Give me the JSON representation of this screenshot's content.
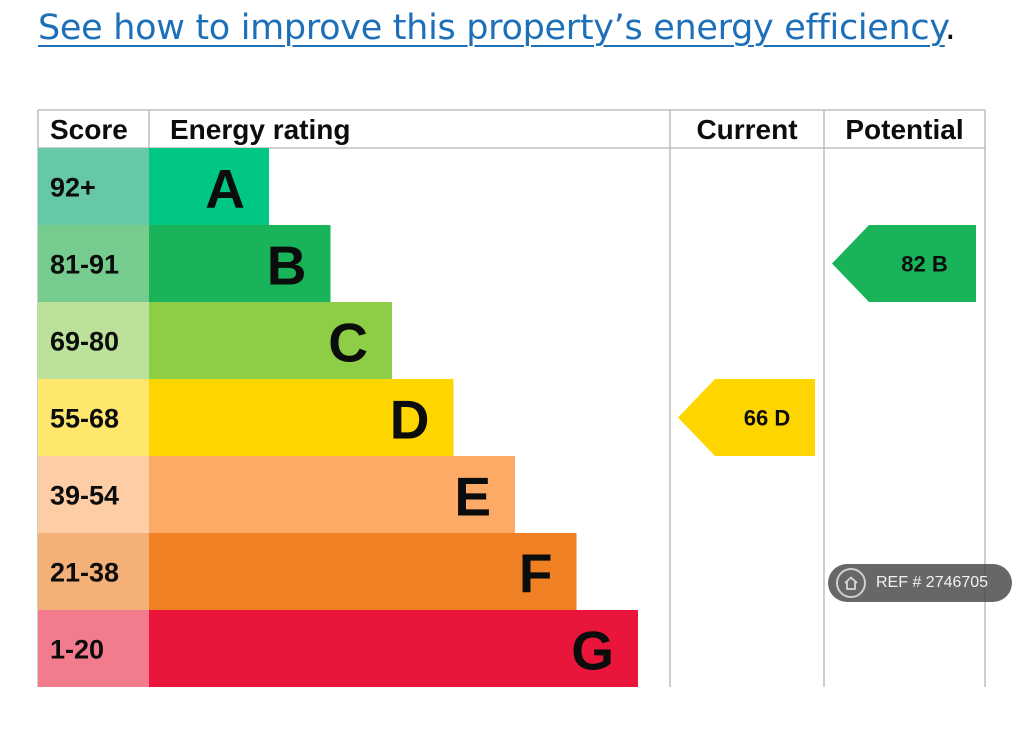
{
  "heading": {
    "link_text": "See how to improve this property’s energy efficiency",
    "suffix": "."
  },
  "chart_data": {
    "type": "bar",
    "headers": {
      "score": "Score",
      "rating": "Energy rating",
      "current": "Current",
      "potential": "Potential"
    },
    "bands": [
      {
        "letter": "A",
        "range": "92+",
        "color": "#00c781",
        "score_color": "#66c8a8"
      },
      {
        "letter": "B",
        "range": "81-91",
        "color": "#19b459",
        "score_color": "#75cc8e"
      },
      {
        "letter": "C",
        "range": "69-80",
        "color": "#8dce46",
        "score_color": "#bbe19a"
      },
      {
        "letter": "D",
        "range": "55-68",
        "color": "#ffd500",
        "score_color": "#ffe66c"
      },
      {
        "letter": "E",
        "range": "39-54",
        "color": "#fcaa65",
        "score_color": "#fdcda5"
      },
      {
        "letter": "F",
        "range": "21-38",
        "color": "#ef8023",
        "score_color": "#f5b077"
      },
      {
        "letter": "G",
        "range": "1-20",
        "color": "#e9153b",
        "score_color": "#f27c8e"
      }
    ],
    "current": {
      "score": 66,
      "band": "D",
      "label": "66  D",
      "color": "#ffd500"
    },
    "potential": {
      "score": 82,
      "band": "B",
      "label": "82  B",
      "color": "#19b459"
    }
  },
  "watermark": {
    "text": "REF # 2746705",
    "icon": "home-icon"
  }
}
